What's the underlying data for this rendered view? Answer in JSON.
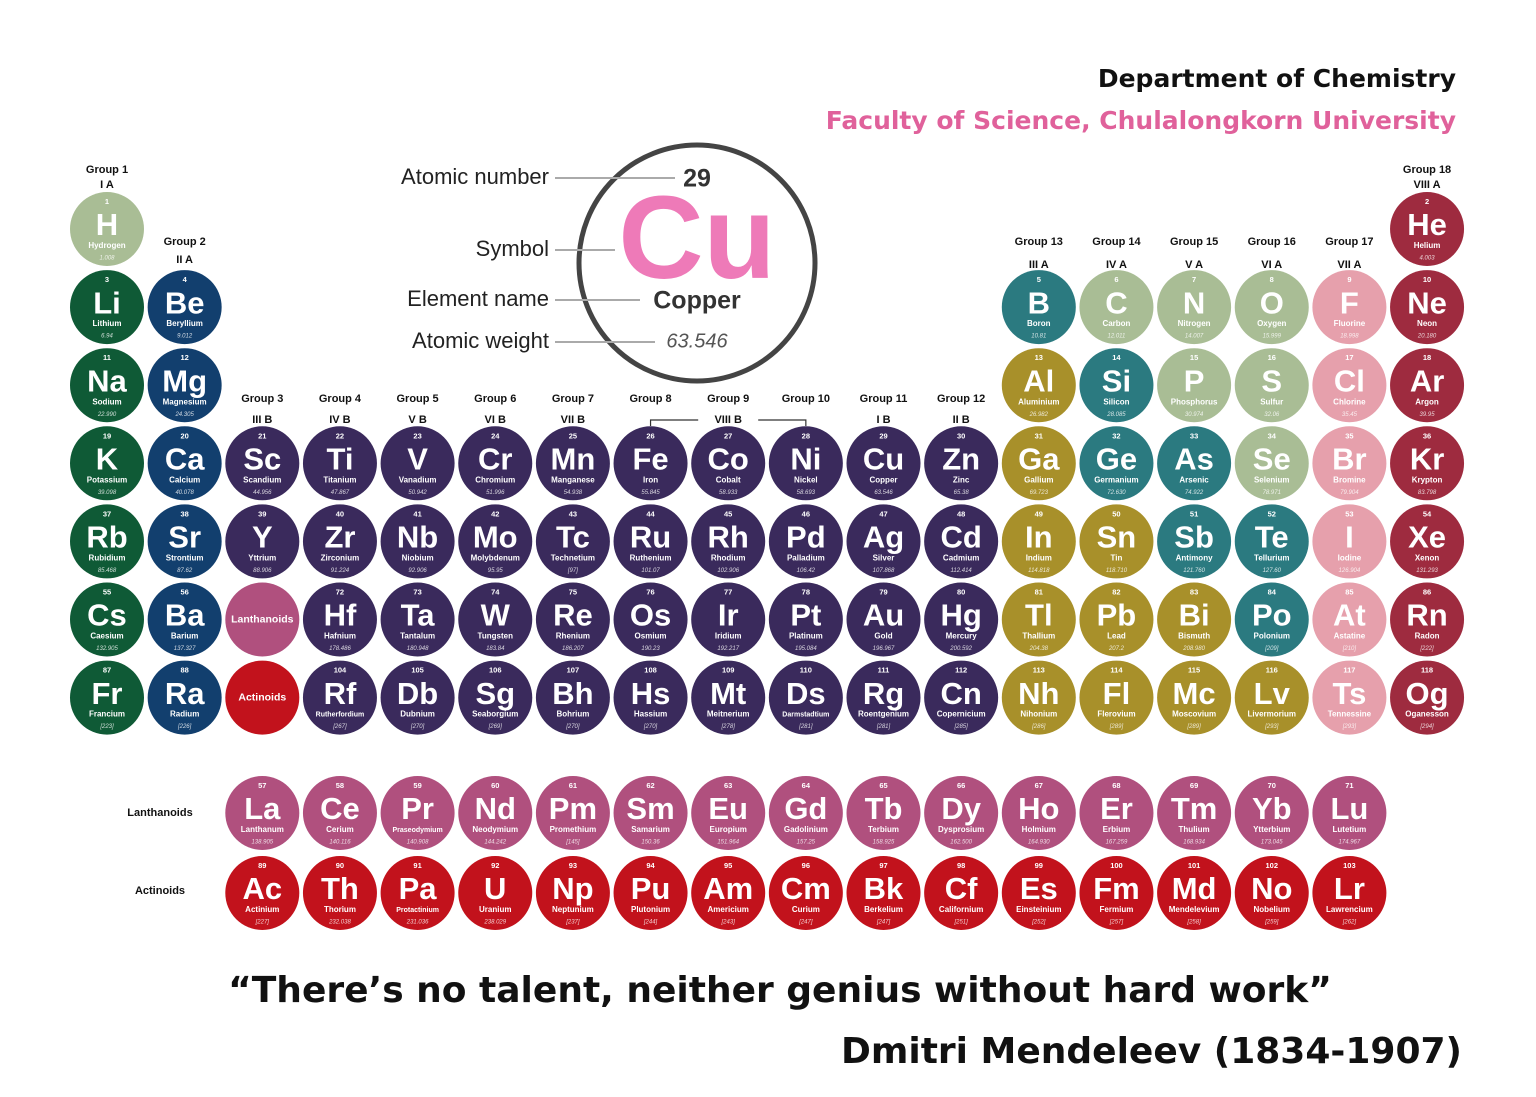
{
  "header": {
    "title": "Department of Chemistry",
    "subtitle": "Faculty of Science, Chulalongkorn University"
  },
  "legend": {
    "number": "29",
    "symbol": "Cu",
    "name": "Copper",
    "weight": "63.546",
    "symbol_color": "#ee7ab8",
    "labels": [
      "Atomic number",
      "Symbol",
      "Element name",
      "Atomic weight"
    ]
  },
  "groups": [
    {
      "name": "Group 1",
      "roman": "I A"
    },
    {
      "name": "Group 2",
      "roman": "II A"
    },
    {
      "name": "Group 3",
      "roman": "III B"
    },
    {
      "name": "Group 4",
      "roman": "IV B"
    },
    {
      "name": "Group 5",
      "roman": "V B"
    },
    {
      "name": "Group 6",
      "roman": "VI B"
    },
    {
      "name": "Group 7",
      "roman": "VII B"
    },
    {
      "name": "Group 8"
    },
    {
      "name": "Group 9",
      "roman": "VIII B"
    },
    {
      "name": "Group 10"
    },
    {
      "name": "Group 11",
      "roman": "I B"
    },
    {
      "name": "Group 12",
      "roman": "II B"
    },
    {
      "name": "Group 13",
      "roman": "III A"
    },
    {
      "name": "Group 14",
      "roman": "IV A"
    },
    {
      "name": "Group 15",
      "roman": "V A"
    },
    {
      "name": "Group 16",
      "roman": "VI A"
    },
    {
      "name": "Group 17",
      "roman": "VII A"
    },
    {
      "name": "Group 18",
      "roman": "VIII A"
    }
  ],
  "lanthanoid_cell": {
    "label": "Lanthanoids",
    "color": "#b0507e"
  },
  "actinoid_cell": {
    "label": "Actinoids",
    "color": "#c2121c"
  },
  "row_labels": [
    "Lanthanoids",
    "Actinoids"
  ],
  "elements": [
    {
      "n": 1,
      "s": "H",
      "name": "Hydrogen",
      "w": "1.008",
      "color": "#a9bd95"
    },
    {
      "n": 2,
      "s": "He",
      "name": "Helium",
      "w": "4.003",
      "color": "#9e2b3f"
    },
    {
      "n": 3,
      "s": "Li",
      "name": "Lithium",
      "w": "6.94",
      "color": "#0f5a36"
    },
    {
      "n": 4,
      "s": "Be",
      "name": "Beryllium",
      "w": "9.012",
      "color": "#123f6e"
    },
    {
      "n": 5,
      "s": "B",
      "name": "Boron",
      "w": "10.81",
      "color": "#2b7a80"
    },
    {
      "n": 6,
      "s": "C",
      "name": "Carbon",
      "w": "12.011",
      "color": "#a9bd95"
    },
    {
      "n": 7,
      "s": "N",
      "name": "Nitrogen",
      "w": "14.007",
      "color": "#a9bd95"
    },
    {
      "n": 8,
      "s": "O",
      "name": "Oxygen",
      "w": "15.999",
      "color": "#a9bd95"
    },
    {
      "n": 9,
      "s": "F",
      "name": "Fluorine",
      "w": "18.998",
      "color": "#e6a0ac"
    },
    {
      "n": 10,
      "s": "Ne",
      "name": "Neon",
      "w": "20.180",
      "color": "#9e2b3f"
    },
    {
      "n": 11,
      "s": "Na",
      "name": "Sodium",
      "w": "22.990",
      "color": "#0f5a36"
    },
    {
      "n": 12,
      "s": "Mg",
      "name": "Magnesium",
      "w": "24.305",
      "color": "#123f6e"
    },
    {
      "n": 13,
      "s": "Al",
      "name": "Aluminium",
      "w": "26.982",
      "color": "#a8902a"
    },
    {
      "n": 14,
      "s": "Si",
      "name": "Silicon",
      "w": "28.085",
      "color": "#2b7a80"
    },
    {
      "n": 15,
      "s": "P",
      "name": "Phosphorus",
      "w": "30.974",
      "color": "#a9bd95"
    },
    {
      "n": 16,
      "s": "S",
      "name": "Sulfur",
      "w": "32.06",
      "color": "#a9bd95"
    },
    {
      "n": 17,
      "s": "Cl",
      "name": "Chlorine",
      "w": "35.45",
      "color": "#e6a0ac"
    },
    {
      "n": 18,
      "s": "Ar",
      "name": "Argon",
      "w": "39.95",
      "color": "#9e2b3f"
    },
    {
      "n": 19,
      "s": "K",
      "name": "Potassium",
      "w": "39.098",
      "color": "#0f5a36"
    },
    {
      "n": 20,
      "s": "Ca",
      "name": "Calcium",
      "w": "40.078",
      "color": "#123f6e"
    },
    {
      "n": 21,
      "s": "Sc",
      "name": "Scandium",
      "w": "44.956",
      "color": "#3a2a5c"
    },
    {
      "n": 22,
      "s": "Ti",
      "name": "Titanium",
      "w": "47.867",
      "color": "#3a2a5c"
    },
    {
      "n": 23,
      "s": "V",
      "name": "Vanadium",
      "w": "50.942",
      "color": "#3a2a5c"
    },
    {
      "n": 24,
      "s": "Cr",
      "name": "Chromium",
      "w": "51.996",
      "color": "#3a2a5c"
    },
    {
      "n": 25,
      "s": "Mn",
      "name": "Manganese",
      "w": "54.938",
      "color": "#3a2a5c"
    },
    {
      "n": 26,
      "s": "Fe",
      "name": "Iron",
      "w": "55.845",
      "color": "#3a2a5c"
    },
    {
      "n": 27,
      "s": "Co",
      "name": "Cobalt",
      "w": "58.933",
      "color": "#3a2a5c"
    },
    {
      "n": 28,
      "s": "Ni",
      "name": "Nickel",
      "w": "58.693",
      "color": "#3a2a5c"
    },
    {
      "n": 29,
      "s": "Cu",
      "name": "Copper",
      "w": "63.546",
      "color": "#3a2a5c"
    },
    {
      "n": 30,
      "s": "Zn",
      "name": "Zinc",
      "w": "65.38",
      "color": "#3a2a5c"
    },
    {
      "n": 31,
      "s": "Ga",
      "name": "Gallium",
      "w": "69.723",
      "color": "#a8902a"
    },
    {
      "n": 32,
      "s": "Ge",
      "name": "Germanium",
      "w": "72.630",
      "color": "#2b7a80"
    },
    {
      "n": 33,
      "s": "As",
      "name": "Arsenic",
      "w": "74.922",
      "color": "#2b7a80"
    },
    {
      "n": 34,
      "s": "Se",
      "name": "Selenium",
      "w": "78.971",
      "color": "#a9bd95"
    },
    {
      "n": 35,
      "s": "Br",
      "name": "Bromine",
      "w": "79.904",
      "color": "#e6a0ac"
    },
    {
      "n": 36,
      "s": "Kr",
      "name": "Krypton",
      "w": "83.798",
      "color": "#9e2b3f"
    },
    {
      "n": 37,
      "s": "Rb",
      "name": "Rubidium",
      "w": "85.468",
      "color": "#0f5a36"
    },
    {
      "n": 38,
      "s": "Sr",
      "name": "Strontium",
      "w": "87.62",
      "color": "#123f6e"
    },
    {
      "n": 39,
      "s": "Y",
      "name": "Yttrium",
      "w": "88.906",
      "color": "#3a2a5c"
    },
    {
      "n": 40,
      "s": "Zr",
      "name": "Zirconium",
      "w": "91.224",
      "color": "#3a2a5c"
    },
    {
      "n": 41,
      "s": "Nb",
      "name": "Niobium",
      "w": "92.906",
      "color": "#3a2a5c"
    },
    {
      "n": 42,
      "s": "Mo",
      "name": "Molybdenum",
      "w": "95.95",
      "color": "#3a2a5c"
    },
    {
      "n": 43,
      "s": "Tc",
      "name": "Technetium",
      "w": "[97]",
      "color": "#3a2a5c"
    },
    {
      "n": 44,
      "s": "Ru",
      "name": "Ruthenium",
      "w": "101.07",
      "color": "#3a2a5c"
    },
    {
      "n": 45,
      "s": "Rh",
      "name": "Rhodium",
      "w": "102.906",
      "color": "#3a2a5c"
    },
    {
      "n": 46,
      "s": "Pd",
      "name": "Palladium",
      "w": "106.42",
      "color": "#3a2a5c"
    },
    {
      "n": 47,
      "s": "Ag",
      "name": "Silver",
      "w": "107.868",
      "color": "#3a2a5c"
    },
    {
      "n": 48,
      "s": "Cd",
      "name": "Cadmium",
      "w": "112.414",
      "color": "#3a2a5c"
    },
    {
      "n": 49,
      "s": "In",
      "name": "Indium",
      "w": "114.818",
      "color": "#a8902a"
    },
    {
      "n": 50,
      "s": "Sn",
      "name": "Tin",
      "w": "118.710",
      "color": "#a8902a"
    },
    {
      "n": 51,
      "s": "Sb",
      "name": "Antimony",
      "w": "121.760",
      "color": "#2b7a80"
    },
    {
      "n": 52,
      "s": "Te",
      "name": "Tellurium",
      "w": "127.60",
      "color": "#2b7a80"
    },
    {
      "n": 53,
      "s": "I",
      "name": "Iodine",
      "w": "126.904",
      "color": "#e6a0ac"
    },
    {
      "n": 54,
      "s": "Xe",
      "name": "Xenon",
      "w": "131.293",
      "color": "#9e2b3f"
    },
    {
      "n": 55,
      "s": "Cs",
      "name": "Caesium",
      "w": "132.905",
      "color": "#0f5a36"
    },
    {
      "n": 56,
      "s": "Ba",
      "name": "Barium",
      "w": "137.327",
      "color": "#123f6e"
    },
    {
      "n": 57,
      "s": "La",
      "name": "Lanthanum",
      "w": "138.905",
      "color": "#b0507e"
    },
    {
      "n": 58,
      "s": "Ce",
      "name": "Cerium",
      "w": "140.116",
      "color": "#b0507e"
    },
    {
      "n": 59,
      "s": "Pr",
      "name": "Praseodymium",
      "w": "140.908",
      "color": "#b0507e"
    },
    {
      "n": 60,
      "s": "Nd",
      "name": "Neodymium",
      "w": "144.242",
      "color": "#b0507e"
    },
    {
      "n": 61,
      "s": "Pm",
      "name": "Promethium",
      "w": "[145]",
      "color": "#b0507e"
    },
    {
      "n": 62,
      "s": "Sm",
      "name": "Samarium",
      "w": "150.36",
      "color": "#b0507e"
    },
    {
      "n": 63,
      "s": "Eu",
      "name": "Europium",
      "w": "151.964",
      "color": "#b0507e"
    },
    {
      "n": 64,
      "s": "Gd",
      "name": "Gadolinium",
      "w": "157.25",
      "color": "#b0507e"
    },
    {
      "n": 65,
      "s": "Tb",
      "name": "Terbium",
      "w": "158.925",
      "color": "#b0507e"
    },
    {
      "n": 66,
      "s": "Dy",
      "name": "Dysprosium",
      "w": "162.500",
      "color": "#b0507e"
    },
    {
      "n": 67,
      "s": "Ho",
      "name": "Holmium",
      "w": "164.930",
      "color": "#b0507e"
    },
    {
      "n": 68,
      "s": "Er",
      "name": "Erbium",
      "w": "167.259",
      "color": "#b0507e"
    },
    {
      "n": 69,
      "s": "Tm",
      "name": "Thulium",
      "w": "168.934",
      "color": "#b0507e"
    },
    {
      "n": 70,
      "s": "Yb",
      "name": "Ytterbium",
      "w": "173.045",
      "color": "#b0507e"
    },
    {
      "n": 71,
      "s": "Lu",
      "name": "Lutetium",
      "w": "174.967",
      "color": "#b0507e"
    },
    {
      "n": 72,
      "s": "Hf",
      "name": "Hafnium",
      "w": "178.486",
      "color": "#3a2a5c"
    },
    {
      "n": 73,
      "s": "Ta",
      "name": "Tantalum",
      "w": "180.948",
      "color": "#3a2a5c"
    },
    {
      "n": 74,
      "s": "W",
      "name": "Tungsten",
      "w": "183.84",
      "color": "#3a2a5c"
    },
    {
      "n": 75,
      "s": "Re",
      "name": "Rhenium",
      "w": "186.207",
      "color": "#3a2a5c"
    },
    {
      "n": 76,
      "s": "Os",
      "name": "Osmium",
      "w": "190.23",
      "color": "#3a2a5c"
    },
    {
      "n": 77,
      "s": "Ir",
      "name": "Iridium",
      "w": "192.217",
      "color": "#3a2a5c"
    },
    {
      "n": 78,
      "s": "Pt",
      "name": "Platinum",
      "w": "195.084",
      "color": "#3a2a5c"
    },
    {
      "n": 79,
      "s": "Au",
      "name": "Gold",
      "w": "196.967",
      "color": "#3a2a5c"
    },
    {
      "n": 80,
      "s": "Hg",
      "name": "Mercury",
      "w": "200.592",
      "color": "#3a2a5c"
    },
    {
      "n": 81,
      "s": "Tl",
      "name": "Thallium",
      "w": "204.38",
      "color": "#a8902a"
    },
    {
      "n": 82,
      "s": "Pb",
      "name": "Lead",
      "w": "207.2",
      "color": "#a8902a"
    },
    {
      "n": 83,
      "s": "Bi",
      "name": "Bismuth",
      "w": "208.980",
      "color": "#a8902a"
    },
    {
      "n": 84,
      "s": "Po",
      "name": "Polonium",
      "w": "[209]",
      "color": "#2b7a80"
    },
    {
      "n": 85,
      "s": "At",
      "name": "Astatine",
      "w": "[210]",
      "color": "#e6a0ac"
    },
    {
      "n": 86,
      "s": "Rn",
      "name": "Radon",
      "w": "[222]",
      "color": "#9e2b3f"
    },
    {
      "n": 87,
      "s": "Fr",
      "name": "Francium",
      "w": "[223]",
      "color": "#0f5a36"
    },
    {
      "n": 88,
      "s": "Ra",
      "name": "Radium",
      "w": "[226]",
      "color": "#123f6e"
    },
    {
      "n": 89,
      "s": "Ac",
      "name": "Actinium",
      "w": "[227]",
      "color": "#c2121c"
    },
    {
      "n": 90,
      "s": "Th",
      "name": "Thorium",
      "w": "232.038",
      "color": "#c2121c"
    },
    {
      "n": 91,
      "s": "Pa",
      "name": "Protactinium",
      "w": "231.036",
      "color": "#c2121c"
    },
    {
      "n": 92,
      "s": "U",
      "name": "Uranium",
      "w": "238.029",
      "color": "#c2121c"
    },
    {
      "n": 93,
      "s": "Np",
      "name": "Neptunium",
      "w": "[237]",
      "color": "#c2121c"
    },
    {
      "n": 94,
      "s": "Pu",
      "name": "Plutonium",
      "w": "[244]",
      "color": "#c2121c"
    },
    {
      "n": 95,
      "s": "Am",
      "name": "Americium",
      "w": "[243]",
      "color": "#c2121c"
    },
    {
      "n": 96,
      "s": "Cm",
      "name": "Curium",
      "w": "[247]",
      "color": "#c2121c"
    },
    {
      "n": 97,
      "s": "Bk",
      "name": "Berkelium",
      "w": "[247]",
      "color": "#c2121c"
    },
    {
      "n": 98,
      "s": "Cf",
      "name": "Californium",
      "w": "[251]",
      "color": "#c2121c"
    },
    {
      "n": 99,
      "s": "Es",
      "name": "Einsteinium",
      "w": "[252]",
      "color": "#c2121c"
    },
    {
      "n": 100,
      "s": "Fm",
      "name": "Fermium",
      "w": "[257]",
      "color": "#c2121c"
    },
    {
      "n": 101,
      "s": "Md",
      "name": "Mendelevium",
      "w": "[258]",
      "color": "#c2121c"
    },
    {
      "n": 102,
      "s": "No",
      "name": "Nobelium",
      "w": "[259]",
      "color": "#c2121c"
    },
    {
      "n": 103,
      "s": "Lr",
      "name": "Lawrencium",
      "w": "[262]",
      "color": "#c2121c"
    },
    {
      "n": 104,
      "s": "Rf",
      "name": "Rutherfordium",
      "w": "[267]",
      "color": "#3a2a5c"
    },
    {
      "n": 105,
      "s": "Db",
      "name": "Dubnium",
      "w": "[270]",
      "color": "#3a2a5c"
    },
    {
      "n": 106,
      "s": "Sg",
      "name": "Seaborgium",
      "w": "[269]",
      "color": "#3a2a5c"
    },
    {
      "n": 107,
      "s": "Bh",
      "name": "Bohrium",
      "w": "[270]",
      "color": "#3a2a5c"
    },
    {
      "n": 108,
      "s": "Hs",
      "name": "Hassium",
      "w": "[270]",
      "color": "#3a2a5c"
    },
    {
      "n": 109,
      "s": "Mt",
      "name": "Meitnerium",
      "w": "[278]",
      "color": "#3a2a5c"
    },
    {
      "n": 110,
      "s": "Ds",
      "name": "Darmstadtium",
      "w": "[281]",
      "color": "#3a2a5c"
    },
    {
      "n": 111,
      "s": "Rg",
      "name": "Roentgenium",
      "w": "[281]",
      "color": "#3a2a5c"
    },
    {
      "n": 112,
      "s": "Cn",
      "name": "Copernicium",
      "w": "[285]",
      "color": "#3a2a5c"
    },
    {
      "n": 113,
      "s": "Nh",
      "name": "Nihonium",
      "w": "[286]",
      "color": "#a8902a"
    },
    {
      "n": 114,
      "s": "Fl",
      "name": "Flerovium",
      "w": "[289]",
      "color": "#a8902a"
    },
    {
      "n": 115,
      "s": "Mc",
      "name": "Moscovium",
      "w": "[289]",
      "color": "#a8902a"
    },
    {
      "n": 116,
      "s": "Lv",
      "name": "Livermorium",
      "w": "[293]",
      "color": "#a8902a"
    },
    {
      "n": 117,
      "s": "Ts",
      "name": "Tennessine",
      "w": "[293]",
      "color": "#e6a0ac"
    },
    {
      "n": 118,
      "s": "Og",
      "name": "Oganesson",
      "w": "[294]",
      "color": "#9e2b3f"
    }
  ],
  "quote": {
    "text": "“There’s no talent, neither genius without hard work”",
    "author": "Dmitri Mendeleev (1834-1907)"
  }
}
